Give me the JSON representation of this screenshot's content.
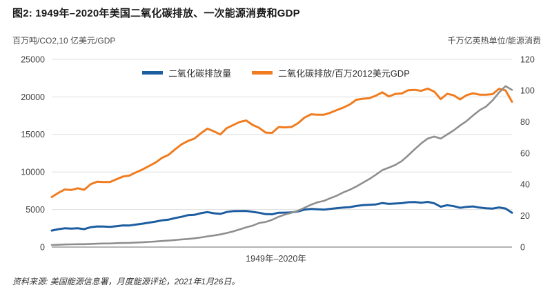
{
  "title": "图2: 1949年–2020年美国二氧化碳排放、一次能源消费和GDP",
  "axis_left_unit": "百万吨/CO2,10 亿美元/GDP",
  "axis_right_unit": "千万亿英热单位/能源消费",
  "x_axis_label": "1949年–2020年",
  "source": "资料来源: 美国能源信息署，月度能源评论，2021年1月26日。",
  "colors": {
    "blue": "#1c5da0",
    "orange": "#f07c1f",
    "gray": "#8e8e8e",
    "grid": "#dedede",
    "axis": "#9b9b9b",
    "tick_text": "#3f3f3f"
  },
  "chart_data": {
    "type": "line",
    "x_start": 1949,
    "x_end": 2020,
    "title": "图2: 1949年–2020年美国二氧化碳排放、一次能源消费和GDP",
    "xlabel": "1949年–2020年",
    "left_axis": {
      "label": "百万吨/CO2,10 亿美元/GDP",
      "min": 0,
      "max": 25000,
      "ticks": [
        0,
        5000,
        10000,
        15000,
        20000,
        25000
      ]
    },
    "right_axis": {
      "label": "千万亿英热单位/能源消费",
      "min": 0,
      "max": 120,
      "ticks": [
        0,
        20,
        40,
        60,
        80,
        100,
        120
      ]
    },
    "grid": true,
    "legend_position": "top-center",
    "series": [
      {
        "name": "二氧化碳排放量",
        "color_key": "blue",
        "axis": "left",
        "legend": true,
        "values": [
          2200,
          2380,
          2500,
          2450,
          2500,
          2390,
          2650,
          2750,
          2730,
          2680,
          2780,
          2890,
          2880,
          3000,
          3120,
          3250,
          3390,
          3560,
          3650,
          3860,
          4030,
          4250,
          4290,
          4510,
          4660,
          4500,
          4420,
          4670,
          4790,
          4810,
          4820,
          4690,
          4570,
          4380,
          4370,
          4580,
          4590,
          4610,
          4750,
          4980,
          5070,
          5040,
          4990,
          5090,
          5180,
          5260,
          5320,
          5480,
          5580,
          5630,
          5680,
          5860,
          5750,
          5800,
          5850,
          5970,
          5990,
          5900,
          6020,
          5830,
          5380,
          5580,
          5450,
          5230,
          5360,
          5410,
          5260,
          5170,
          5130,
          5280,
          5140,
          4570
        ]
      },
      {
        "name": "二氧化碳排放/百万2012美元GDP",
        "color_key": "orange",
        "axis": "right",
        "legend": true,
        "values": [
          32.0,
          34.6,
          36.8,
          36.5,
          37.6,
          36.6,
          40.2,
          41.8,
          41.6,
          41.6,
          43.4,
          45.1,
          45.7,
          47.8,
          49.6,
          51.8,
          54.0,
          57.0,
          58.9,
          62.4,
          65.6,
          67.8,
          69.3,
          72.7,
          75.7,
          74.0,
          72.0,
          76.0,
          78.0,
          80.0,
          80.9,
          78.1,
          76.2,
          73.2,
          73.0,
          76.7,
          76.5,
          76.8,
          79.2,
          82.8,
          84.9,
          84.6,
          84.6,
          85.9,
          87.6,
          89.2,
          91.2,
          94.2,
          94.8,
          95.2,
          96.8,
          98.9,
          96.3,
          97.9,
          98.2,
          100.3,
          100.5,
          99.9,
          101.3,
          99.4,
          94.6,
          98.0,
          97.0,
          94.4,
          97.1,
          98.3,
          97.4,
          97.4,
          97.7,
          101.2,
          100.2,
          92.9
        ]
      },
      {
        "name": "GDP",
        "color_key": "gray",
        "axis": "left",
        "legend": false,
        "values": [
          272,
          300,
          347,
          367,
          389,
          390,
          425,
          449,
          474,
          482,
          522,
          542,
          562,
          603,
          638,
          685,
          742,
          813,
          860,
          941,
          1018,
          1073,
          1164,
          1279,
          1425,
          1545,
          1684,
          1873,
          2082,
          2352,
          2627,
          2857,
          3207,
          3344,
          3634,
          4038,
          4339,
          4580,
          4855,
          5236,
          5642,
          5963,
          6158,
          6520,
          6859,
          7287,
          7640,
          8073,
          8578,
          9063,
          9631,
          10252,
          10582,
          10936,
          11458,
          12214,
          13037,
          13815,
          14452,
          14713,
          14449,
          14992,
          15543,
          16197,
          16785,
          17527,
          18225,
          18715,
          19519,
          20580,
          21433,
          20937
        ]
      }
    ]
  }
}
